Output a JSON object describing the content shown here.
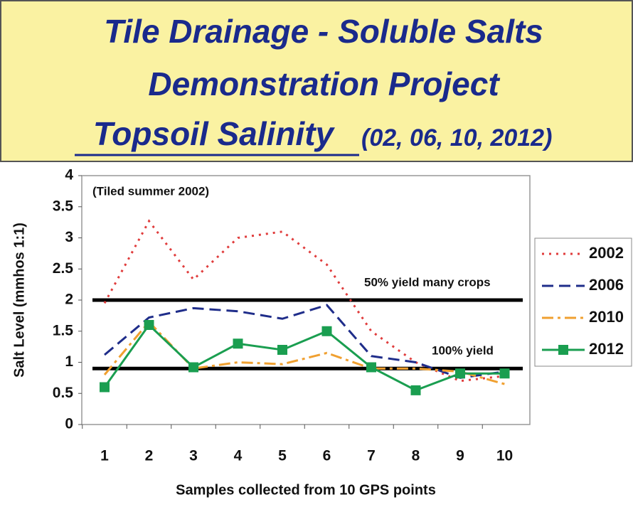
{
  "chart_data": {
    "type": "line",
    "title_lines": [
      "Tile Drainage - Soluble Salts",
      "Demonstration Project",
      "Topsoil Salinity"
    ],
    "subtitle": "(02, 06, 10, 2012)",
    "annotation": "(Tiled summer 2002)",
    "x_label": "Samples collected from 10 GPS points",
    "y_label": "Salt Level (mmhos 1:1)",
    "categories": [
      "1",
      "2",
      "3",
      "4",
      "5",
      "6",
      "7",
      "8",
      "9",
      "10"
    ],
    "ylim": [
      0,
      4
    ],
    "yticks": [
      0,
      0.5,
      1,
      1.5,
      2,
      2.5,
      3,
      3.5,
      4
    ],
    "reference_lines": [
      {
        "value": 2,
        "label": "50% yield many crops"
      },
      {
        "value": 0.9,
        "label": "100% yield"
      }
    ],
    "legend": "right",
    "series": [
      {
        "name": "2002",
        "color": "#e03c3c",
        "dash": "dotted",
        "values": [
          1.95,
          3.27,
          2.33,
          3.0,
          3.1,
          2.57,
          1.5,
          1.0,
          0.7,
          0.78
        ]
      },
      {
        "name": "2006",
        "color": "#1f2d8a",
        "dash": "dashed",
        "values": [
          1.12,
          1.72,
          1.87,
          1.82,
          1.7,
          1.92,
          1.1,
          1.0,
          0.75,
          0.85
        ]
      },
      {
        "name": "2010",
        "color": "#f0a030",
        "dash": "dashdot",
        "values": [
          0.8,
          1.65,
          0.9,
          1.0,
          0.97,
          1.15,
          0.9,
          0.9,
          0.85,
          0.65
        ]
      },
      {
        "name": "2012",
        "color": "#1a9e50",
        "dash": "solid",
        "marker": "square",
        "values": [
          0.6,
          1.6,
          0.92,
          1.3,
          1.2,
          1.5,
          0.92,
          0.55,
          0.82,
          0.82
        ]
      }
    ]
  }
}
